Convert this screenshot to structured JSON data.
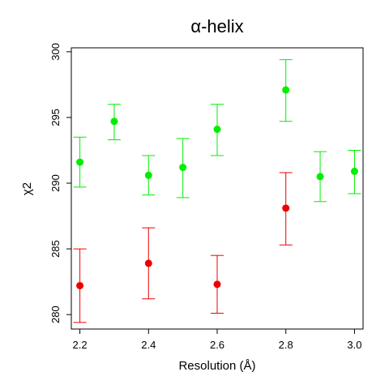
{
  "chart_data": {
    "type": "scatter",
    "title": "α-helix",
    "xlabel": "Resolution (Å)",
    "ylabel": "χ2",
    "xlim": [
      2.175,
      3.025
    ],
    "ylim": [
      278.9,
      300.3
    ],
    "xticks": [
      2.2,
      2.4,
      2.6,
      2.8,
      3.0
    ],
    "xtick_labels": [
      "2.2",
      "2.4",
      "2.6",
      "2.8",
      "3.0"
    ],
    "yticks": [
      280,
      285,
      290,
      295,
      300
    ],
    "ytick_labels": [
      "280",
      "285",
      "290",
      "295",
      "300"
    ],
    "grid": false,
    "series": [
      {
        "color": "#00ee00",
        "points": [
          {
            "x": 2.2,
            "y": 291.6,
            "lo": 289.7,
            "hi": 293.5
          },
          {
            "x": 2.3,
            "y": 294.7,
            "lo": 293.3,
            "hi": 296.0
          },
          {
            "x": 2.4,
            "y": 290.6,
            "lo": 289.1,
            "hi": 292.1
          },
          {
            "x": 2.5,
            "y": 291.2,
            "lo": 288.9,
            "hi": 293.4
          },
          {
            "x": 2.6,
            "y": 294.1,
            "lo": 292.1,
            "hi": 296.0
          },
          {
            "x": 2.8,
            "y": 297.1,
            "lo": 294.7,
            "hi": 299.4
          },
          {
            "x": 2.9,
            "y": 290.5,
            "lo": 288.6,
            "hi": 292.4
          },
          {
            "x": 3.0,
            "y": 290.9,
            "lo": 289.2,
            "hi": 292.5
          }
        ]
      },
      {
        "color": "#ee0000",
        "points": [
          {
            "x": 2.2,
            "y": 282.2,
            "lo": 279.4,
            "hi": 285.0
          },
          {
            "x": 2.4,
            "y": 283.9,
            "lo": 281.2,
            "hi": 286.6
          },
          {
            "x": 2.6,
            "y": 282.3,
            "lo": 280.1,
            "hi": 284.5
          },
          {
            "x": 2.8,
            "y": 288.1,
            "lo": 285.3,
            "hi": 290.8
          }
        ]
      }
    ]
  }
}
